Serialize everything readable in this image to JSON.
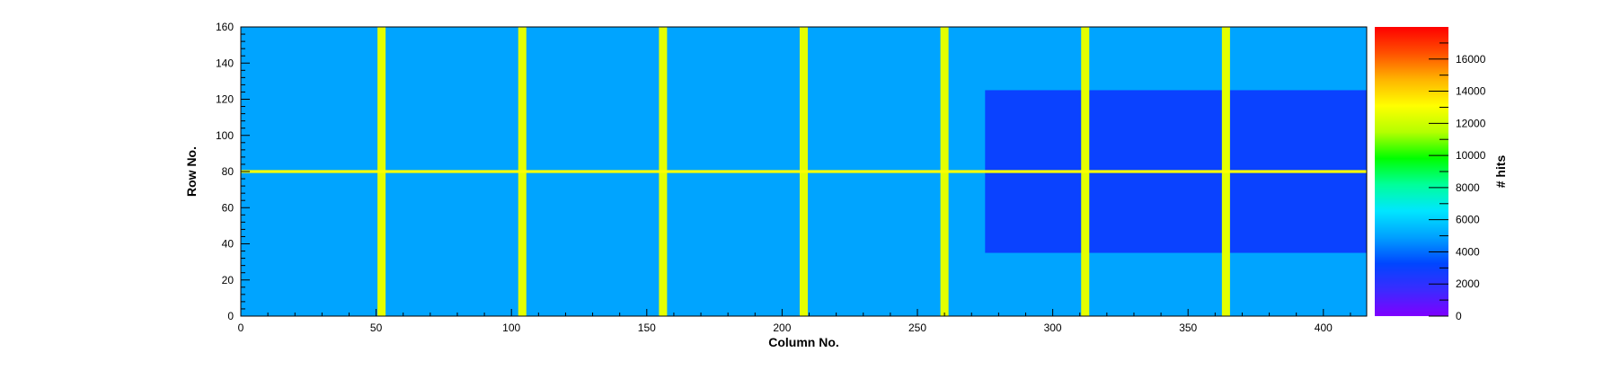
{
  "chart_data": {
    "type": "heatmap",
    "xlabel": "Column No.",
    "ylabel": "Row No.",
    "zlabel": "# hits",
    "xlim": [
      0,
      416
    ],
    "ylim": [
      0,
      160
    ],
    "zlim": [
      0,
      18000
    ],
    "x_ticks": [
      0,
      50,
      100,
      150,
      200,
      250,
      300,
      350,
      400
    ],
    "y_ticks": [
      0,
      20,
      40,
      60,
      80,
      100,
      120,
      140,
      160
    ],
    "z_ticks": [
      0,
      2000,
      4000,
      6000,
      8000,
      10000,
      12000,
      14000,
      16000
    ],
    "background_level": 5000,
    "right_region_level": 3000,
    "stripe_level": 12500,
    "hot_row_level": 13000,
    "stripe_columns": [
      52,
      104,
      156,
      208,
      260,
      312,
      364
    ],
    "hot_row": 80,
    "colormap": [
      "#7f00ff",
      "#3a2bff",
      "#0046ff",
      "#00a0ff",
      "#00e6ff",
      "#00ff9a",
      "#00ff00",
      "#b4ff00",
      "#ffff00",
      "#ffb400",
      "#ff5000",
      "#ff0000"
    ],
    "grid": false,
    "legend": "colorbar-right"
  }
}
